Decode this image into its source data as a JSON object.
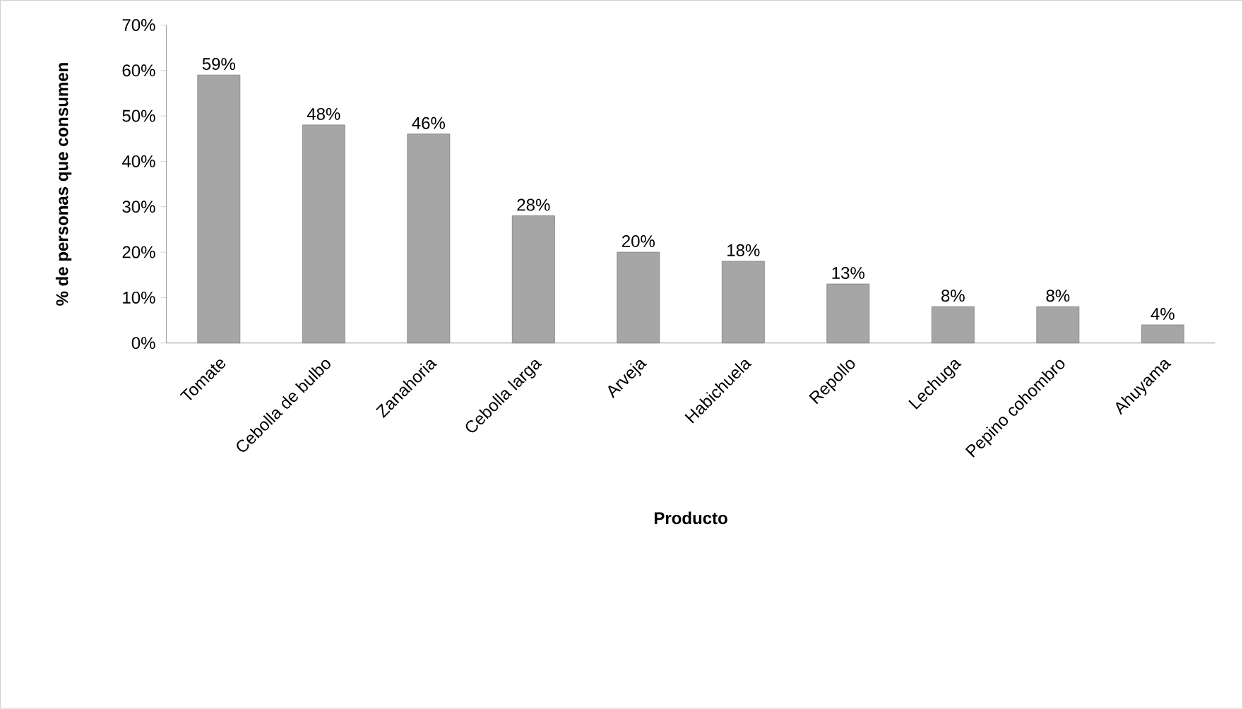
{
  "chart_data": {
    "type": "bar",
    "xlabel": "Producto",
    "ylabel": "% de personas que consumen",
    "categories": [
      "Tomate",
      "Cebolla de bulbo",
      "Zanahoria",
      "Cebolla larga",
      "Arveja",
      "Habichuela",
      "Repollo",
      "Lechuga",
      "Pepino cohombro",
      "Ahuyama"
    ],
    "values": [
      59,
      48,
      46,
      28,
      20,
      18,
      13,
      8,
      8,
      4
    ],
    "value_labels": [
      "59%",
      "48%",
      "46%",
      "28%",
      "20%",
      "18%",
      "13%",
      "8%",
      "8%",
      "4%"
    ],
    "color": "#a6a6a6",
    "ylim": [
      0,
      70
    ],
    "yticks": [
      {
        "value": 0,
        "label": "0%"
      },
      {
        "value": 10,
        "label": "10%"
      },
      {
        "value": 20,
        "label": "20%"
      },
      {
        "value": 30,
        "label": "30%"
      },
      {
        "value": 40,
        "label": "40%"
      },
      {
        "value": 50,
        "label": "50%"
      },
      {
        "value": 60,
        "label": "60%"
      },
      {
        "value": 70,
        "label": "70%"
      }
    ],
    "grid": false
  }
}
